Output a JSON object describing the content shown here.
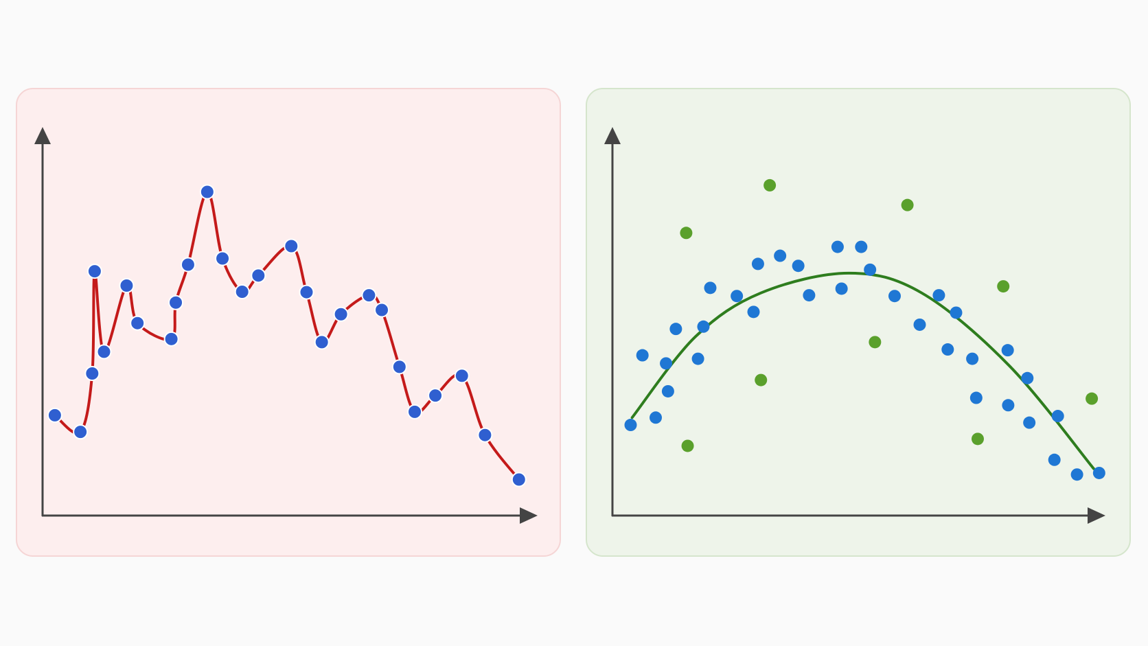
{
  "chart_data": [
    {
      "type": "line",
      "smooth": true,
      "color": "#c41a1a",
      "marker_color": "#2f5fd0",
      "x": [
        2.5,
        7.7,
        10.1,
        10.6,
        12.5,
        17.1,
        19.3,
        26.2,
        27.1,
        29.6,
        33.5,
        36.6,
        40.6,
        43.9,
        50.6,
        53.7,
        56.8,
        60.7,
        66.4,
        69.0,
        72.6,
        75.7,
        79.9,
        85.3,
        90.0,
        96.9
      ],
      "values": [
        25.9,
        21.6,
        36.7,
        63.1,
        42.3,
        59.4,
        49.7,
        45.6,
        55.0,
        64.8,
        83.6,
        66.4,
        57.8,
        62.0,
        69.6,
        57.7,
        44.8,
        52.0,
        56.9,
        53.1,
        38.4,
        26.8,
        31.0,
        36.1,
        20.8,
        9.3
      ],
      "xlim": [
        0,
        100
      ],
      "ylim": [
        0,
        100
      ]
    },
    {
      "type": "scatter",
      "series": [
        {
          "color": "#1f77d4",
          "x": [
            3.7,
            6.1,
            8.8,
            10.9,
            11.3,
            12.9,
            17.4,
            18.5,
            19.9,
            25.3,
            28.7,
            29.6,
            34.1,
            37.8,
            40.0,
            45.8,
            46.6,
            50.6,
            52.4,
            57.4,
            62.5,
            66.4,
            68.2,
            69.9,
            73.2,
            74.0,
            80.4,
            80.5,
            84.4,
            84.8,
            89.9,
            90.6,
            94.5,
            99.0
          ],
          "values": [
            23.4,
            41.4,
            25.3,
            39.3,
            32.1,
            48.2,
            40.5,
            48.8,
            58.8,
            56.7,
            52.6,
            65.0,
            67.1,
            64.5,
            56.9,
            69.4,
            58.6,
            69.4,
            63.5,
            56.7,
            49.3,
            56.9,
            42.9,
            52.4,
            40.5,
            30.4,
            42.7,
            28.5,
            35.5,
            24.0,
            14.4,
            25.7,
            10.6,
            11.0
          ]
        },
        {
          "color": "#5aa02c",
          "x": [
            15.0,
            32.0,
            60.0,
            79.5,
            53.4,
            30.2,
            15.3,
            74.3,
            97.5
          ],
          "values": [
            73.0,
            85.3,
            80.2,
            59.2,
            44.8,
            35.0,
            18.0,
            19.8,
            30.2
          ]
        }
      ],
      "fit": {
        "color": "#2e7d1e",
        "smooth": true,
        "x": [
          4.0,
          16.8,
          30.2,
          48.1,
          62.9,
          80.8,
          97.9
        ],
        "values": [
          25.3,
          46.1,
          57.5,
          62.6,
          57.5,
          38.6,
          12.1
        ]
      },
      "xlim": [
        0,
        100
      ],
      "ylim": [
        0,
        100
      ]
    }
  ]
}
